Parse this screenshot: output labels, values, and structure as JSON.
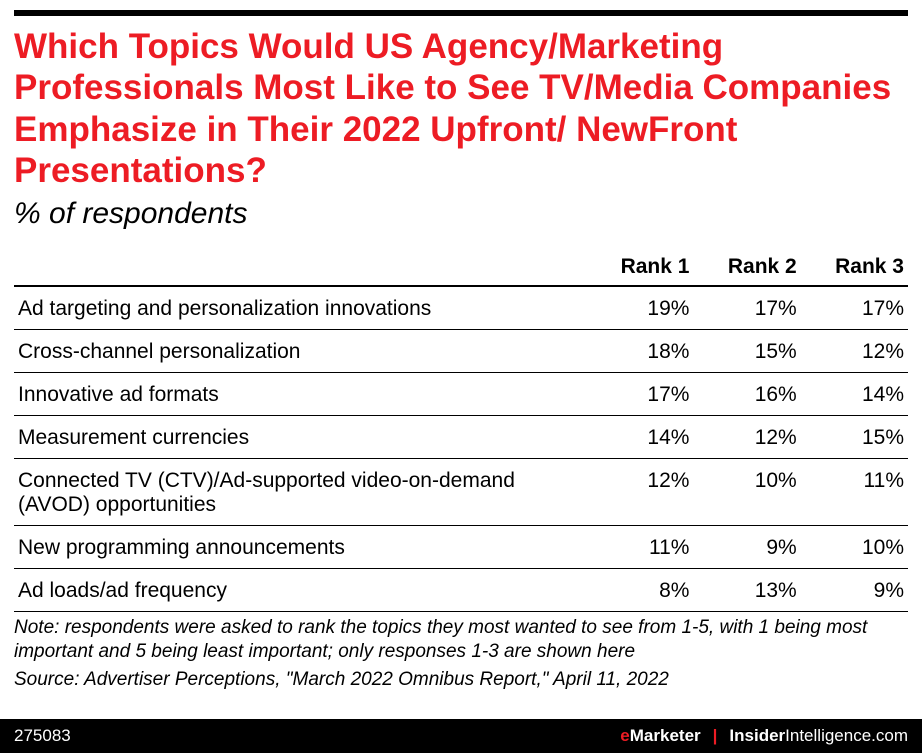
{
  "title": "Which Topics Would US Agency/Marketing Professionals Most Like to See TV/Media Companies Emphasize in Their 2022 Upfront/ NewFront Presentations?",
  "subtitle": "% of respondents",
  "columns": [
    "Rank 1",
    "Rank 2",
    "Rank 3"
  ],
  "rows": [
    {
      "label": "Ad targeting and personalization innovations",
      "r1": "19%",
      "r2": "17%",
      "r3": "17%"
    },
    {
      "label": "Cross-channel personalization",
      "r1": "18%",
      "r2": "15%",
      "r3": "12%"
    },
    {
      "label": "Innovative ad formats",
      "r1": "17%",
      "r2": "16%",
      "r3": "14%"
    },
    {
      "label": "Measurement currencies",
      "r1": "14%",
      "r2": "12%",
      "r3": "15%"
    },
    {
      "label": "Connected TV (CTV)/Ad-supported video-on-demand (AVOD) opportunities",
      "r1": "12%",
      "r2": "10%",
      "r3": "11%"
    },
    {
      "label": "New programming announcements",
      "r1": "11%",
      "r2": "9%",
      "r3": "10%"
    },
    {
      "label": "Ad loads/ad frequency",
      "r1": "8%",
      "r2": "13%",
      "r3": "9%"
    }
  ],
  "note": "Note: respondents were asked to rank the topics they most wanted to see from 1-5, with 1 being most important and 5 being least important; only responses 1-3 are shown here",
  "source": "Source: Advertiser Perceptions, \"March 2022 Omnibus Report,\" April 11, 2022",
  "chart_id": "275083",
  "brand1_prefix": "e",
  "brand1_rest": "Marketer",
  "brand2_bold": "Insider",
  "brand2_rest": "Intelligence.com",
  "colors": {
    "title": "#ed1c24",
    "text": "#000000",
    "rule": "#000000",
    "footer_bg": "#000000",
    "footer_text": "#ffffff",
    "accent": "#ed1c24",
    "background": "#ffffff"
  },
  "fontsizes": {
    "title": 35,
    "subtitle": 30,
    "table": 21,
    "note": 19,
    "footer": 17
  }
}
